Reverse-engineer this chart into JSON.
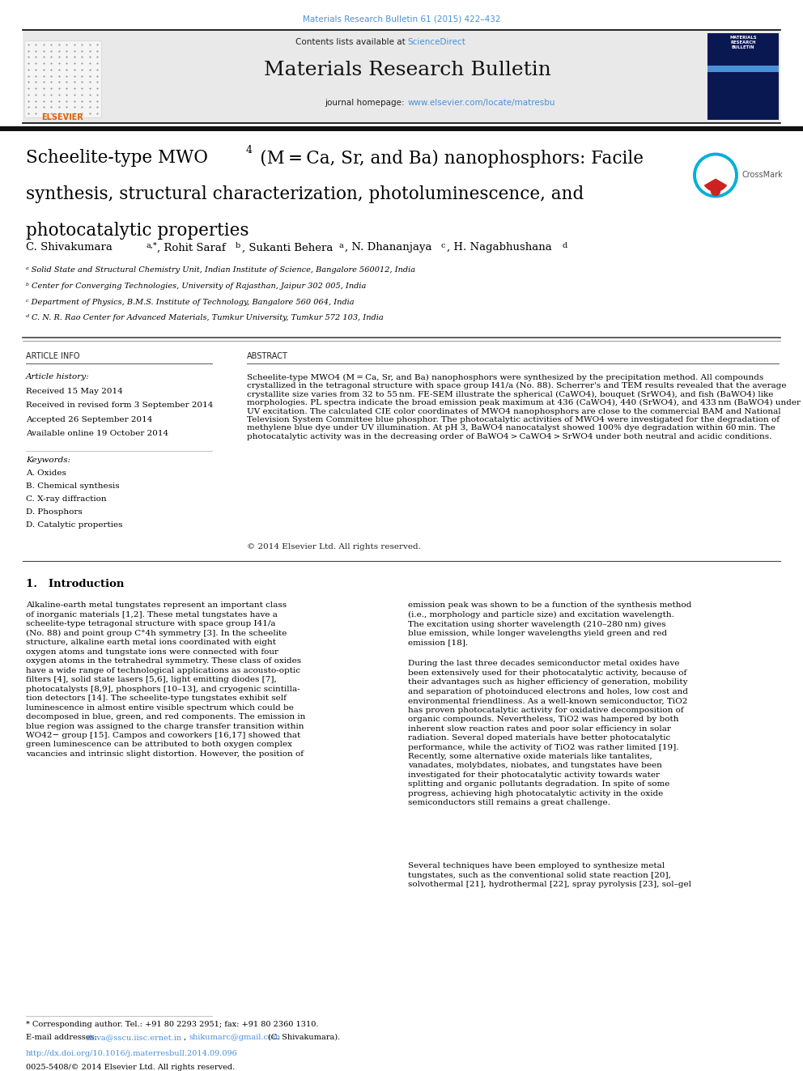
{
  "page_width": 9.92,
  "page_height": 13.23,
  "dpi": 100,
  "bg_color": "#ffffff",
  "journal_ref": "Materials Research Bulletin 61 (2015) 422–432",
  "journal_ref_color": "#4a90d9",
  "contents_line": "Contents lists available at",
  "sciencedirect": "ScienceDirect",
  "sciencedirect_color": "#4a90d9",
  "journal_title": "Materials Research Bulletin",
  "journal_homepage_prefix": "journal homepage: ",
  "journal_homepage_url": "www.elsevier.com/locate/matresbu",
  "journal_homepage_url_color": "#4a90d9",
  "header_bg": "#e8e8e8",
  "affil_a": "ᵃ Solid State and Structural Chemistry Unit, Indian Institute of Science, Bangalore 560012, India",
  "affil_b": "ᵇ Center for Converging Technologies, University of Rajasthan, Jaipur 302 005, India",
  "affil_c": "ᶜ Department of Physics, B.M.S. Institute of Technology, Bangalore 560 064, India",
  "affil_d": "ᵈ C. N. R. Rao Center for Advanced Materials, Tumkur University, Tumkur 572 103, India",
  "section_article_info": "ARTICLE INFO",
  "section_abstract": "ABSTRACT",
  "article_history_label": "Article history:",
  "received": "Received 15 May 2014",
  "received_revised": "Received in revised form 3 September 2014",
  "accepted": "Accepted 26 September 2014",
  "available_online": "Available online 19 October 2014",
  "keywords_label": "Keywords:",
  "keyword1": "A. Oxides",
  "keyword2": "B. Chemical synthesis",
  "keyword3": "C. X-ray diffraction",
  "keyword4": "D. Phosphors",
  "keyword5": "D. Catalytic properties",
  "abstract_text": "Scheelite-type MWO4 (M = Ca, Sr, and Ba) nanophosphors were synthesized by the precipitation method. All compounds crystallized in the tetragonal structure with space group I41/a (No. 88). Scherrer's and TEM results revealed that the average crystallite size varies from 32 to 55 nm. FE-SEM illustrate the spherical (CaWO4), bouquet (SrWO4), and fish (BaWO4) like morphologies. PL spectra indicate the broad emission peak maximum at 436 (CaWO4), 440 (SrWO4), and 433 nm (BaWO4) under UV excitation. The calculated CIE color coordinates of MWO4 nanophosphors are close to the commercial BAM and National Television System Committee blue phosphor. The photocatalytic activities of MWO4 were investigated for the degradation of methylene blue dye under UV illumination. At pH 3, BaWO4 nanocatalyst showed 100% dye degradation within 60 min. The photocatalytic activity was in the decreasing order of BaWO4 > CaWO4 > SrWO4 under both neutral and acidic conditions.",
  "copyright_line": "© 2014 Elsevier Ltd. All rights reserved.",
  "section1_title": "1.   Introduction",
  "intro_col1_para1": "Alkaline-earth metal tungstates represent an important class\nof inorganic materials [1,2]. These metal tungstates have a\nscheelite-type tetragonal structure with space group I41/a\n(No. 88) and point group C°4h symmetry [3]. In the scheelite\nstructure, alkaline earth metal ions coordinated with eight\noxygen atoms and tungstate ions were connected with four\noxygen atoms in the tetrahedral symmetry. These class of oxides\nhave a wide range of technological applications as acousto-optic\nfilters [4], solid state lasers [5,6], light emitting diodes [7],\nphotocatalysts [8,9], phosphors [10–13], and cryogenic scintilla-\ntion detectors [14]. The scheelite-type tungstates exhibit self\nluminescence in almost entire visible spectrum which could be\ndecomposed in blue, green, and red components. The emission in\nblue region was assigned to the charge transfer transition within\nWO42− group [15]. Campos and coworkers [16,17] showed that\ngreen luminescence can be attributed to both oxygen complex\nvacancies and intrinsic slight distortion. However, the position of",
  "intro_col2_para1": "emission peak was shown to be a function of the synthesis method\n(i.e., morphology and particle size) and excitation wavelength.\nThe excitation using shorter wavelength (210–280 nm) gives\nblue emission, while longer wavelengths yield green and red\nemission [18].",
  "intro_col2_para2": "During the last three decades semiconductor metal oxides have\nbeen extensively used for their photocatalytic activity, because of\ntheir advantages such as higher efficiency of generation, mobility\nand separation of photoinduced electrons and holes, low cost and\nenvironmental friendliness. As a well-known semiconductor, TiO2\nhas proven photocatalytic activity for oxidative decomposition of\norganic compounds. Nevertheless, TiO2 was hampered by both\ninherent slow reaction rates and poor solar efficiency in solar\nradiation. Several doped materials have better photocatalytic\nperformance, while the activity of TiO2 was rather limited [19].\nRecently, some alternative oxide materials like tantalites,\nvanadates, molybdates, niobates, and tungstates have been\ninvestigated for their photocatalytic activity towards water\nsplitting and organic pollutants degradation. In spite of some\nprogress, achieving high photocatalytic activity in the oxide\nsemiconductors still remains a great challenge.",
  "intro_col2_para3": "Several techniques have been employed to synthesize metal\ntungstates, such as the conventional solid state reaction [20],\nsolvothermal [21], hydrothermal [22], spray pyrolysis [23], sol–gel",
  "footnote_star": "* Corresponding author. Tel.: +91 80 2293 2951; fax: +91 80 2360 1310.",
  "footnote_email_label": "E-mail addresses: ",
  "footnote_email1": "shiva@sscu.iisc.ernet.in",
  "footnote_email2": "shikumarc@gmail.com",
  "footnote_parenthetical": "(C. Shivakumara).",
  "doi_line": "http://dx.doi.org/10.1016/j.materresbull.2014.09.096",
  "issn_line": "0025-5408/© 2014 Elsevier Ltd. All rights reserved.",
  "doi_color": "#4a90d9",
  "email_color": "#4a90d9"
}
